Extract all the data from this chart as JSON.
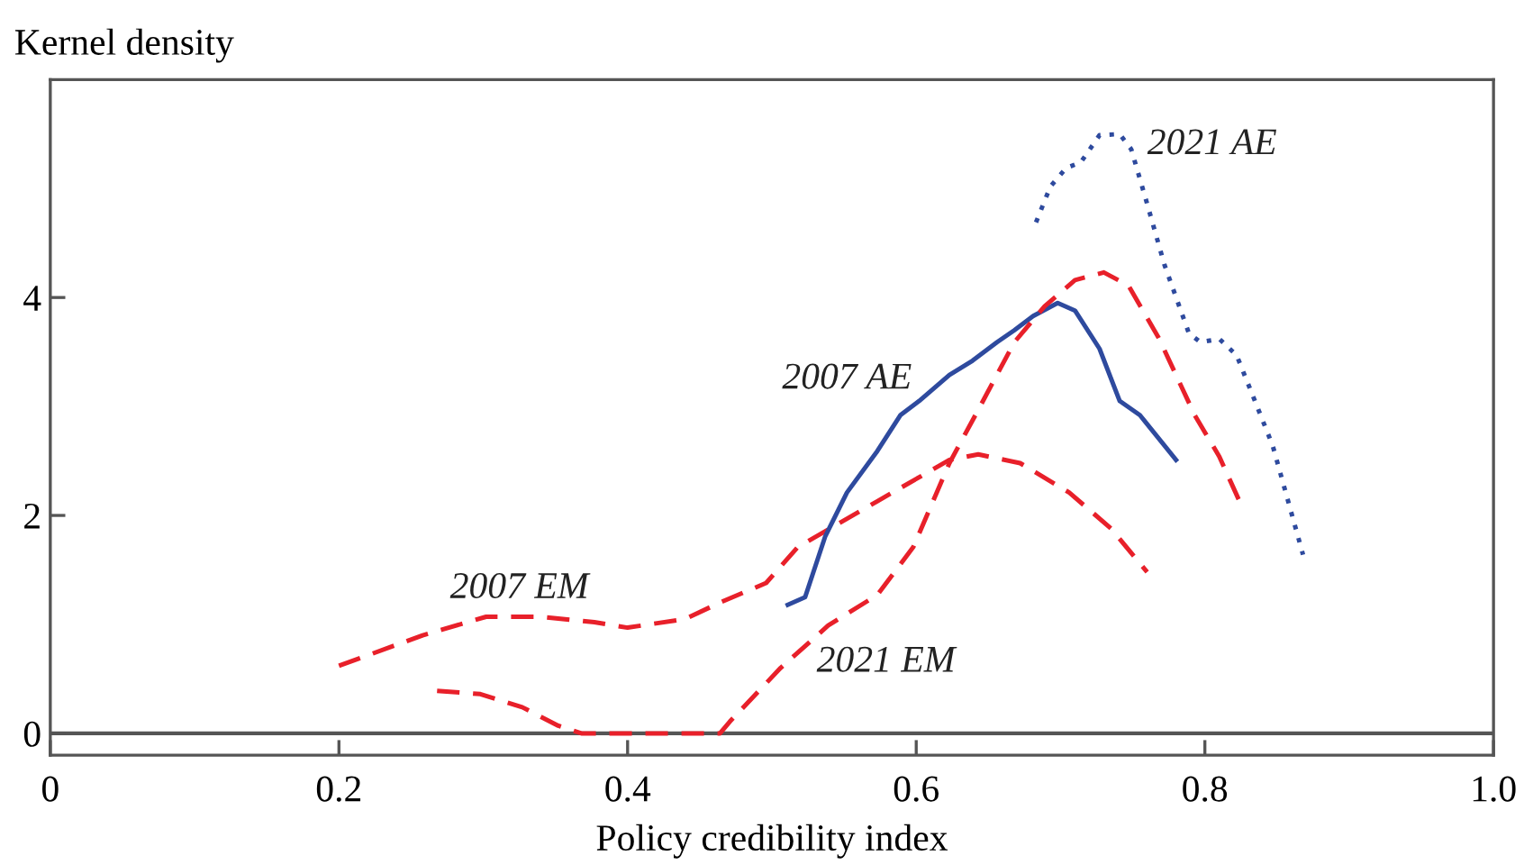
{
  "chart_data": {
    "type": "line",
    "xlabel": "Policy credibility index",
    "ylabel": "Kernel density",
    "xlim": [
      0,
      1.0
    ],
    "ylim": [
      -0.2,
      6.0
    ],
    "xticks": [
      0,
      0.2,
      0.4,
      0.6,
      0.8,
      {
        "value": 1.0,
        "label": "1.0"
      }
    ],
    "yticks": [
      0,
      2,
      4
    ],
    "grid": false,
    "marker": "none",
    "ref_lines": [
      {
        "axis": "y",
        "value": 0,
        "color": "#555555"
      }
    ],
    "series": [
      {
        "name": "2007 EM",
        "color": "#e8202a",
        "line_style": "dashed",
        "x": [
          0.2,
          0.258,
          0.302,
          0.34,
          0.377,
          0.4,
          0.44,
          0.464,
          0.496,
          0.518,
          0.573,
          0.623,
          0.643,
          0.672,
          0.706,
          0.735,
          0.76
        ],
        "values": [
          0.62,
          0.9,
          1.07,
          1.07,
          1.02,
          0.97,
          1.05,
          1.2,
          1.38,
          1.71,
          2.13,
          2.51,
          2.56,
          2.48,
          2.21,
          1.88,
          1.48
        ]
      },
      {
        "name": "2007 AE",
        "color": "#2e4a9e",
        "line_style": "solid",
        "x": [
          0.511,
          0.523,
          0.537,
          0.552,
          0.573,
          0.589,
          0.602,
          0.623,
          0.639,
          0.656,
          0.668,
          0.681,
          0.698,
          0.71,
          0.727,
          0.741,
          0.755,
          0.78
        ],
        "values": [
          1.18,
          1.25,
          1.81,
          2.21,
          2.59,
          2.92,
          3.05,
          3.29,
          3.42,
          3.59,
          3.7,
          3.83,
          3.95,
          3.88,
          3.53,
          3.05,
          2.92,
          2.51
        ]
      },
      {
        "name": "2021 EM",
        "color": "#e8202a",
        "line_style": "dashed",
        "x": [
          0.268,
          0.298,
          0.327,
          0.352,
          0.368,
          0.4,
          0.44,
          0.464,
          0.471,
          0.506,
          0.539,
          0.573,
          0.598,
          0.623,
          0.643,
          0.668,
          0.689,
          0.71,
          0.73,
          0.747,
          0.768,
          0.793,
          0.81,
          0.824
        ],
        "values": [
          0.39,
          0.36,
          0.24,
          0.07,
          0.0,
          0.0,
          0.0,
          0.0,
          0.11,
          0.6,
          0.99,
          1.27,
          1.71,
          2.48,
          2.97,
          3.59,
          3.92,
          4.16,
          4.23,
          4.11,
          3.63,
          2.92,
          2.54,
          2.13
        ]
      },
      {
        "name": "2021 AE",
        "color": "#2e4a9e",
        "line_style": "dotted",
        "x": [
          0.683,
          0.693,
          0.704,
          0.714,
          0.727,
          0.741,
          0.749,
          0.76,
          0.772,
          0.789,
          0.797,
          0.81,
          0.822,
          0.835,
          0.847,
          0.868
        ],
        "values": [
          4.69,
          5.02,
          5.19,
          5.24,
          5.49,
          5.5,
          5.36,
          4.86,
          4.3,
          3.67,
          3.59,
          3.62,
          3.47,
          3.04,
          2.64,
          1.64
        ]
      }
    ]
  }
}
